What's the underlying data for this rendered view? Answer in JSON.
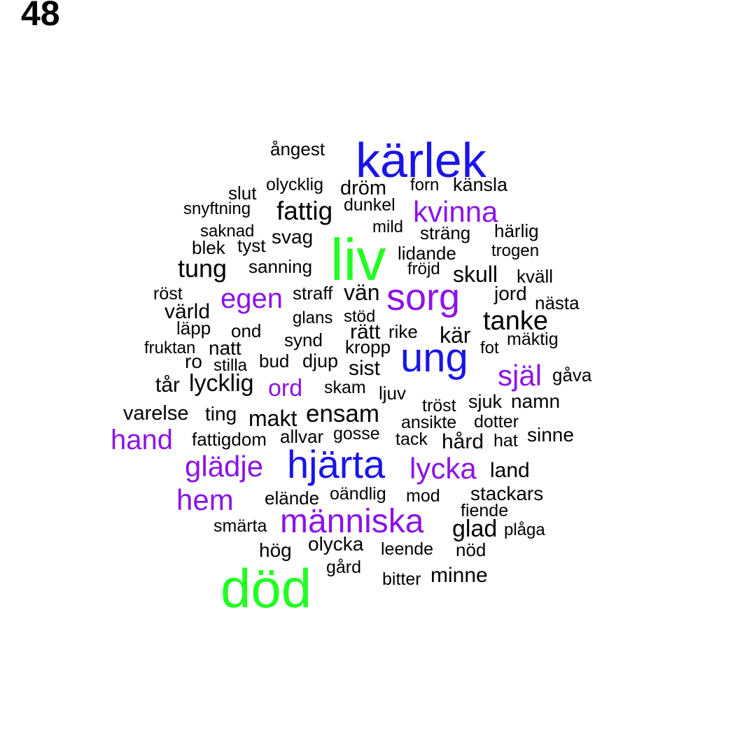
{
  "panel_label": "48",
  "colors": {
    "green": "#22ff22",
    "blue": "#1a14e8",
    "purple": "#8b14e6",
    "black": "#000000"
  },
  "words": [
    {
      "text": "död",
      "color": "green"
    },
    {
      "text": "liv",
      "color": "green"
    },
    {
      "text": "kärlek",
      "color": "blue"
    },
    {
      "text": "hjärta",
      "color": "blue"
    },
    {
      "text": "ung",
      "color": "blue"
    },
    {
      "text": "sorg",
      "color": "purple"
    },
    {
      "text": "människa",
      "color": "purple"
    },
    {
      "text": "kvinna",
      "color": "purple"
    },
    {
      "text": "glädje",
      "color": "purple"
    },
    {
      "text": "lycka",
      "color": "purple"
    },
    {
      "text": "hem",
      "color": "purple"
    },
    {
      "text": "hand",
      "color": "purple"
    },
    {
      "text": "egen",
      "color": "purple"
    },
    {
      "text": "själ",
      "color": "purple"
    },
    {
      "text": "ord",
      "color": "purple"
    },
    {
      "text": "ångest",
      "color": "black"
    },
    {
      "text": "olycklig",
      "color": "black"
    },
    {
      "text": "dröm",
      "color": "black"
    },
    {
      "text": "forn",
      "color": "black"
    },
    {
      "text": "känsla",
      "color": "black"
    },
    {
      "text": "slut",
      "color": "black"
    },
    {
      "text": "snyftning",
      "color": "black"
    },
    {
      "text": "fattig",
      "color": "black"
    },
    {
      "text": "dunkel",
      "color": "black"
    },
    {
      "text": "mild",
      "color": "black"
    },
    {
      "text": "sträng",
      "color": "black"
    },
    {
      "text": "härlig",
      "color": "black"
    },
    {
      "text": "saknad",
      "color": "black"
    },
    {
      "text": "svag",
      "color": "black"
    },
    {
      "text": "blek",
      "color": "black"
    },
    {
      "text": "tyst",
      "color": "black"
    },
    {
      "text": "lidande",
      "color": "black"
    },
    {
      "text": "trogen",
      "color": "black"
    },
    {
      "text": "tung",
      "color": "black"
    },
    {
      "text": "sanning",
      "color": "black"
    },
    {
      "text": "fröjd",
      "color": "black"
    },
    {
      "text": "skull",
      "color": "black"
    },
    {
      "text": "kväll",
      "color": "black"
    },
    {
      "text": "röst",
      "color": "black"
    },
    {
      "text": "straff",
      "color": "black"
    },
    {
      "text": "vän",
      "color": "black"
    },
    {
      "text": "jord",
      "color": "black"
    },
    {
      "text": "nästa",
      "color": "black"
    },
    {
      "text": "värld",
      "color": "black"
    },
    {
      "text": "glans",
      "color": "black"
    },
    {
      "text": "stöd",
      "color": "black"
    },
    {
      "text": "tanke",
      "color": "black"
    },
    {
      "text": "läpp",
      "color": "black"
    },
    {
      "text": "ond",
      "color": "black"
    },
    {
      "text": "rätt",
      "color": "black"
    },
    {
      "text": "rike",
      "color": "black"
    },
    {
      "text": "kär",
      "color": "black"
    },
    {
      "text": "mäktig",
      "color": "black"
    },
    {
      "text": "fruktan",
      "color": "black"
    },
    {
      "text": "natt",
      "color": "black"
    },
    {
      "text": "synd",
      "color": "black"
    },
    {
      "text": "kropp",
      "color": "black"
    },
    {
      "text": "fot",
      "color": "black"
    },
    {
      "text": "ro",
      "color": "black"
    },
    {
      "text": "stilla",
      "color": "black"
    },
    {
      "text": "bud",
      "color": "black"
    },
    {
      "text": "djup",
      "color": "black"
    },
    {
      "text": "sist",
      "color": "black"
    },
    {
      "text": "gåva",
      "color": "black"
    },
    {
      "text": "tår",
      "color": "black"
    },
    {
      "text": "lycklig",
      "color": "black"
    },
    {
      "text": "skam",
      "color": "black"
    },
    {
      "text": "ljuv",
      "color": "black"
    },
    {
      "text": "sjuk",
      "color": "black"
    },
    {
      "text": "namn",
      "color": "black"
    },
    {
      "text": "tröst",
      "color": "black"
    },
    {
      "text": "varelse",
      "color": "black"
    },
    {
      "text": "ting",
      "color": "black"
    },
    {
      "text": "makt",
      "color": "black"
    },
    {
      "text": "ensam",
      "color": "black"
    },
    {
      "text": "ansikte",
      "color": "black"
    },
    {
      "text": "dotter",
      "color": "black"
    },
    {
      "text": "fattigdom",
      "color": "black"
    },
    {
      "text": "allvar",
      "color": "black"
    },
    {
      "text": "gosse",
      "color": "black"
    },
    {
      "text": "tack",
      "color": "black"
    },
    {
      "text": "hård",
      "color": "black"
    },
    {
      "text": "hat",
      "color": "black"
    },
    {
      "text": "sinne",
      "color": "black"
    },
    {
      "text": "land",
      "color": "black"
    },
    {
      "text": "elände",
      "color": "black"
    },
    {
      "text": "oändlig",
      "color": "black"
    },
    {
      "text": "mod",
      "color": "black"
    },
    {
      "text": "stackars",
      "color": "black"
    },
    {
      "text": "fiende",
      "color": "black"
    },
    {
      "text": "smärta",
      "color": "black"
    },
    {
      "text": "glad",
      "color": "black"
    },
    {
      "text": "plåga",
      "color": "black"
    },
    {
      "text": "olycka",
      "color": "black"
    },
    {
      "text": "hög",
      "color": "black"
    },
    {
      "text": "leende",
      "color": "black"
    },
    {
      "text": "nöd",
      "color": "black"
    },
    {
      "text": "gård",
      "color": "black"
    },
    {
      "text": "bitter",
      "color": "black"
    },
    {
      "text": "minne",
      "color": "black"
    }
  ]
}
